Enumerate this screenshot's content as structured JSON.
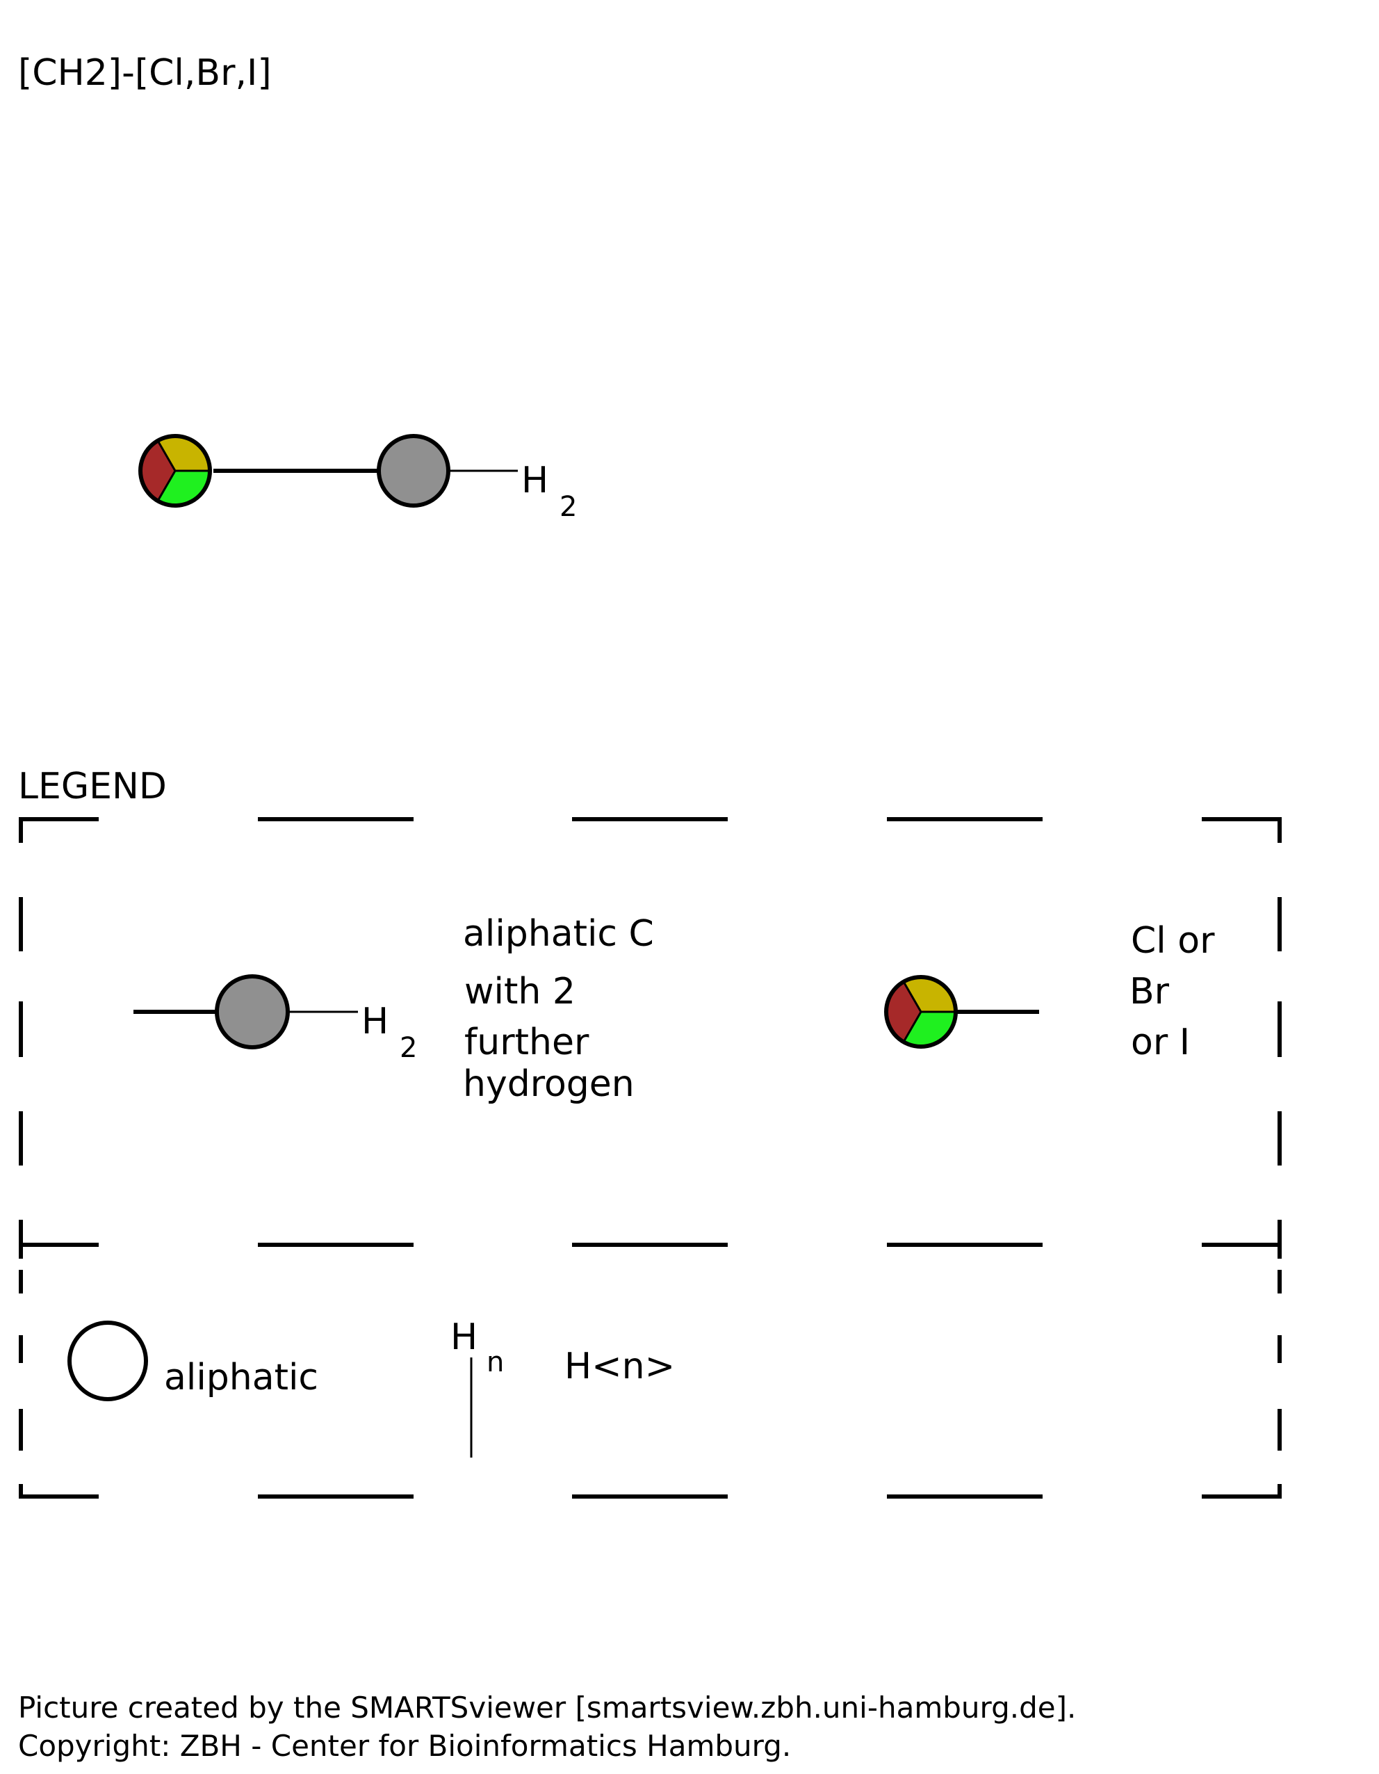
{
  "smarts": "[CH2]-[Cl,Br,I]",
  "colors": {
    "aliphatic_carbon": "#909090",
    "chlorine": "#1ff01f",
    "bromine": "#a62929",
    "iodine": "#c8b400",
    "line": "#000000",
    "background": "#ffffff"
  },
  "molecule": {
    "hydrogen_label": "H",
    "hydrogen_count": "2"
  },
  "legend": {
    "title": "LEGEND",
    "carbon_entry": {
      "hydrogen_label": "H",
      "hydrogen_count": "2",
      "description_lines": [
        "aliphatic C",
        "with 2",
        "further",
        "hydrogen"
      ]
    },
    "halogen_entry": {
      "description_lines": [
        "Cl or",
        "Br",
        "or I"
      ]
    },
    "aliphatic_entry": {
      "label": "aliphatic"
    },
    "hydrogen_entry": {
      "symbol": "H",
      "superscript": "n",
      "label": "H<n>"
    }
  },
  "footer": {
    "line1": "Picture created by the SMARTSviewer [smartsview.zbh.uni-hamburg.de].",
    "line2": "Copyright: ZBH - Center for Bioinformatics Hamburg."
  }
}
